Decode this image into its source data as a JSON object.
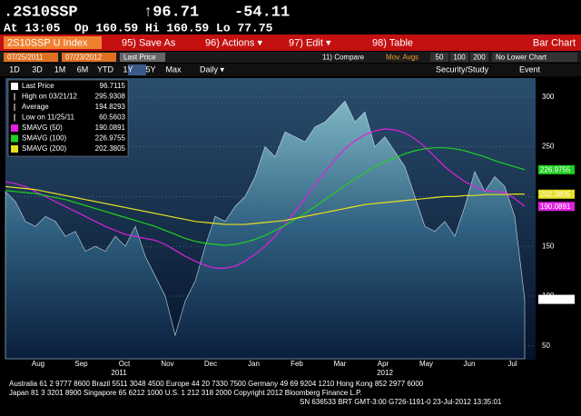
{
  "header": {
    "ticker": ".2S10SSP",
    "last": "↑96.71",
    "change": "-54.11",
    "quote": "At 13:05  Op 160.59 Hi 160.59 Lo 77.75"
  },
  "toolbar": {
    "security": "2S10SSP U Index",
    "buttons": [
      "95) Save As",
      "96) Actions ▾",
      "97) Edit ▾",
      "98) Table"
    ],
    "chart_type": "Bar Chart"
  },
  "controls": {
    "start": "07/25/2011",
    "end": "07/23/2012",
    "field": "Last Price",
    "compare": "11) Compare",
    "mov_avgs": "Mov. Avgs",
    "periods": [
      "50",
      "100",
      "200"
    ],
    "lower": "No Lower Chart",
    "ranges": [
      "1D",
      "3D",
      "1M",
      "6M",
      "YTD",
      "1Y",
      "5Y",
      "Max"
    ],
    "frequency": "Daily ▾",
    "study": "Security/Study",
    "event": "Event"
  },
  "chart_data": {
    "type": "area",
    "x_tick_labels": [
      "Aug",
      "Sep",
      "Oct",
      "Nov",
      "Dec",
      "Jan",
      "Feb",
      "Mar",
      "Apr",
      "May",
      "Jun",
      "Jul"
    ],
    "years": [
      "2011",
      "2012"
    ],
    "ylim": [
      37,
      319
    ],
    "yticks": [
      50,
      100,
      150,
      200,
      250,
      300
    ],
    "grid": true,
    "series": [
      {
        "name": "Last Price",
        "color": "#ffffff",
        "values": [
          205,
          195,
          175,
          170,
          180,
          175,
          160,
          165,
          145,
          150,
          145,
          160,
          150,
          170,
          140,
          120,
          100,
          60.5603,
          95,
          115,
          150,
          180,
          175,
          190,
          200,
          220,
          250,
          240,
          265,
          260,
          255,
          270,
          275,
          285,
          295.9308,
          275,
          285,
          250,
          260,
          245,
          230,
          200,
          170,
          165,
          175,
          160,
          190,
          225,
          205,
          220,
          210,
          180,
          96.7115
        ]
      },
      {
        "name": "SMAVG (50)",
        "color": "#e020e0",
        "values": [
          215,
          213,
          210,
          205,
          200,
          195,
          190,
          185,
          180,
          175,
          170,
          166,
          162,
          160,
          158,
          156,
          152,
          146,
          140,
          135,
          131,
          128,
          128,
          130,
          135,
          142,
          150,
          160,
          172,
          185,
          198,
          212,
          225,
          237,
          248,
          256,
          262,
          266,
          268,
          267,
          264,
          258,
          250,
          240,
          230,
          222,
          215,
          210,
          206,
          205,
          204,
          198,
          190.0891
        ]
      },
      {
        "name": "SMAVG (100)",
        "color": "#20d020",
        "values": [
          206,
          205,
          204,
          203,
          201,
          199,
          197,
          194,
          191,
          188,
          185,
          182,
          179,
          176,
          173,
          170,
          166,
          162,
          158,
          155,
          153,
          152,
          151,
          152,
          154,
          157,
          161,
          166,
          171,
          177,
          183,
          190,
          197,
          204,
          211,
          218,
          224,
          230,
          235,
          239,
          243,
          246,
          248,
          249,
          249,
          248,
          246,
          243,
          240,
          236,
          233,
          230,
          226.9755
        ]
      },
      {
        "name": "SMAVG (200)",
        "color": "#e8e020",
        "values": [
          210,
          209,
          208,
          207,
          205,
          203,
          201,
          199,
          197,
          195,
          193,
          191,
          189,
          187,
          185,
          183,
          181,
          179,
          177,
          175,
          174,
          173,
          172,
          172,
          172,
          173,
          174,
          175,
          176,
          178,
          180,
          182,
          184,
          186,
          188,
          190,
          192,
          193,
          194,
          195,
          196,
          197,
          198,
          199,
          200,
          200,
          201,
          201,
          202,
          202,
          202,
          202.5,
          202.3805
        ]
      }
    ],
    "legend_stats": [
      {
        "label": "High on 03/21/12",
        "value": 295.9308
      },
      {
        "label": "Average",
        "value": 194.8293
      },
      {
        "label": "Low on 11/25/11",
        "value": 60.5603
      }
    ]
  },
  "footer": [
    "Australia 61 2 9777 8600 Brazil 5511 3048 4500 Europe 44 20 7330 7500 Germany 49 69 9204 1210 Hong Kong 852 2977 6000",
    "Japan 81 3 3201 8900         Singapore 65 6212 1000         U.S. 1 212 318 2000         Copyright 2012 Bloomberg Finance L.P.",
    "SN 636533 BRT  GMT-3:00 G726-1191-0 23-Jul-2012 13:35:01"
  ]
}
